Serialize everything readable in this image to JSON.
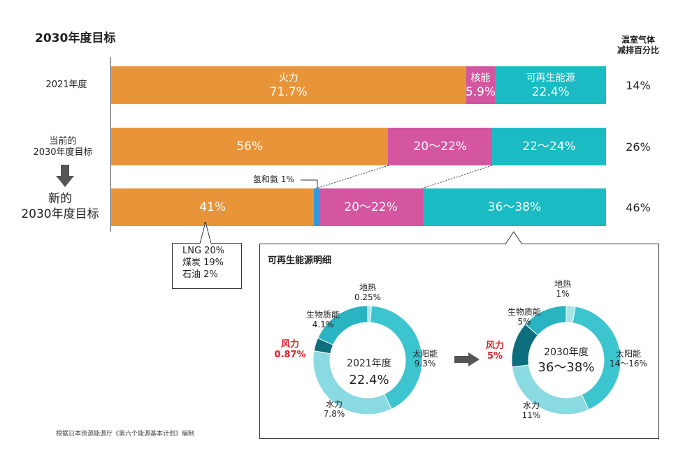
{
  "title": "2030年度目标",
  "ghg_header": [
    "温室气体",
    "减排百分比"
  ],
  "rows": [
    {
      "label": [
        "2021年度"
      ],
      "ghg": "14%",
      "segments": [
        {
          "name": "火力",
          "label": "71.7%",
          "value": 71.7,
          "color": "#E8953A"
        },
        {
          "name": "核能",
          "label": "5.9%",
          "value": 5.9,
          "color": "#D456A0"
        },
        {
          "name": "可再生能源",
          "label": "22.4%",
          "value": 22.4,
          "color": "#1BBBC4"
        }
      ]
    },
    {
      "label": [
        "当前的",
        "2030年度目标"
      ],
      "ghg": "26%",
      "segments": [
        {
          "name": "",
          "label": "56%",
          "value": 56,
          "color": "#E8953A"
        },
        {
          "name": "",
          "label": "20～22%",
          "value": 21,
          "color": "#D456A0"
        },
        {
          "name": "",
          "label": "22～24%",
          "value": 23,
          "color": "#1BBBC4"
        }
      ]
    },
    {
      "label": [
        "新的",
        "2030年度目标"
      ],
      "ghg": "46%",
      "segments": [
        {
          "name": "",
          "label": "41%",
          "value": 41,
          "color": "#E8953A"
        },
        {
          "name": "",
          "label": "",
          "value": 1,
          "color": "#2E9BE0"
        },
        {
          "name": "",
          "label": "20～22%",
          "value": 21,
          "color": "#D456A0"
        },
        {
          "name": "",
          "label": "36～38%",
          "value": 37,
          "color": "#1BBBC4"
        }
      ]
    }
  ],
  "hydrogen_label": "氢和氨 1%",
  "fossil_breakdown": [
    "LNG 20%",
    "煤炭 19%",
    "石油 2%"
  ],
  "renewables_panel": {
    "title": "可再生能源明细",
    "donuts": [
      {
        "center_year": "2021年度",
        "center_value": "22.4%",
        "slices": [
          {
            "name": "地热",
            "label": "0.25%",
            "value": 0.25,
            "color": "#A6E4EA"
          },
          {
            "name": "太阳能",
            "label": "9.3%",
            "value": 9.3,
            "color": "#3CC4CF"
          },
          {
            "name": "水力",
            "label": "7.8%",
            "value": 7.8,
            "color": "#8ADAE2"
          },
          {
            "name": "风力",
            "label": "0.87%",
            "value": 0.87,
            "color": "#0D6E7E"
          },
          {
            "name": "生物质能",
            "label": "4.1%",
            "value": 4.1,
            "color": "#2AB3C0"
          }
        ]
      },
      {
        "center_year": "2030年度",
        "center_value": "36～38%",
        "slices": [
          {
            "name": "地热",
            "label": "1%",
            "value": 1,
            "color": "#A6E4EA"
          },
          {
            "name": "太阳能",
            "label": "14～16%",
            "value": 15,
            "color": "#3CC4CF"
          },
          {
            "name": "水力",
            "label": "11%",
            "value": 11,
            "color": "#8ADAE2"
          },
          {
            "name": "风力",
            "label": "5%",
            "value": 5,
            "color": "#0D6E7E"
          },
          {
            "name": "生物质能",
            "label": "5%",
            "value": 5,
            "color": "#2AB3C0"
          }
        ]
      }
    ]
  },
  "source": "根据日本资源能源厅《第六个能源基本计划》编制"
}
